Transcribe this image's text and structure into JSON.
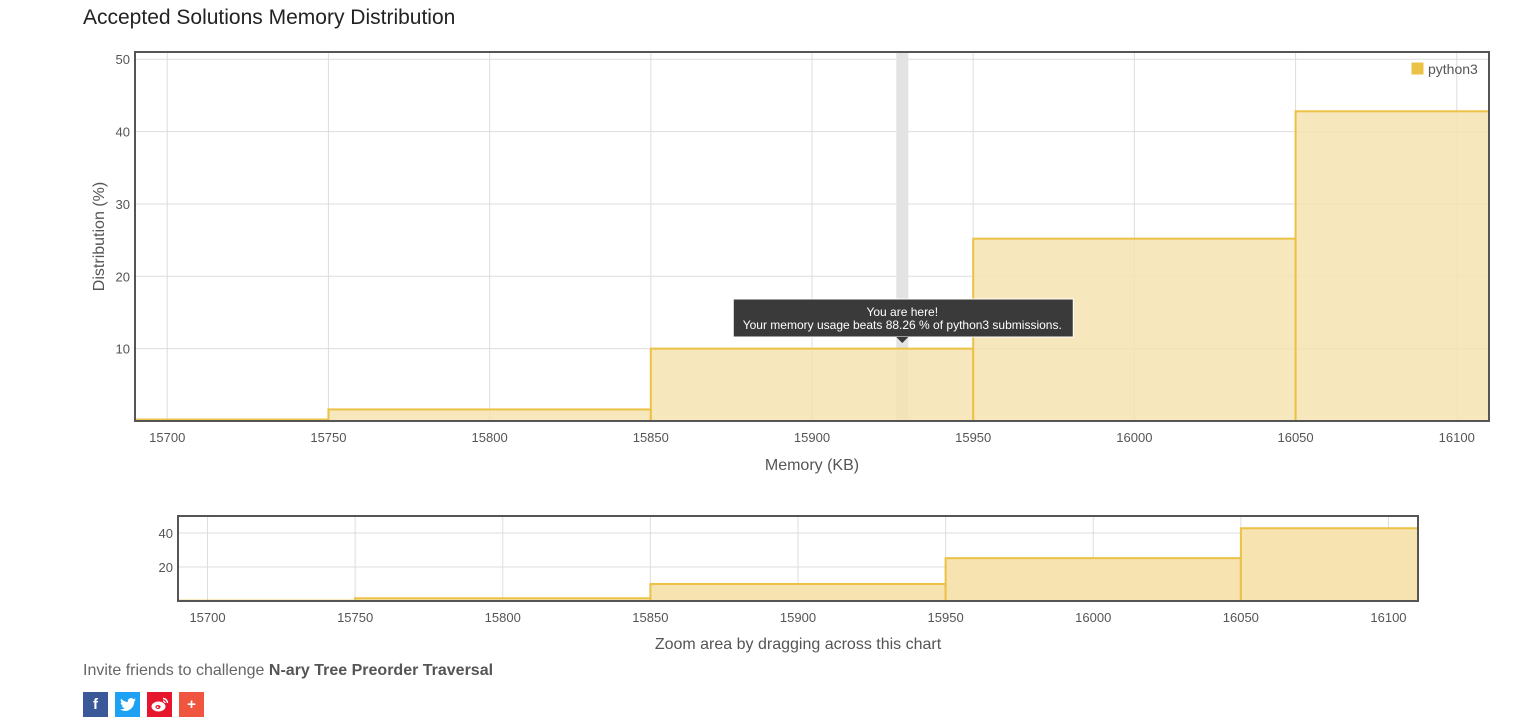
{
  "page": {
    "title": "Accepted Solutions Memory Distribution"
  },
  "chart_data": [
    {
      "type": "bar",
      "title": "Accepted Solutions Memory Distribution",
      "xlabel": "Memory (KB)",
      "ylabel": "Distribution (%)",
      "xlim": [
        15690,
        16110
      ],
      "ylim": [
        0,
        51
      ],
      "x_ticks": [
        15700,
        15750,
        15800,
        15850,
        15900,
        15950,
        16000,
        16050,
        16100
      ],
      "y_ticks": [
        10,
        20,
        30,
        40,
        50
      ],
      "grid": true,
      "legend_position": "top-right",
      "series": [
        {
          "name": "python3",
          "bins": [
            {
              "start": 15650,
              "end": 15750,
              "value": 0.2
            },
            {
              "start": 15750,
              "end": 15850,
              "value": 1.6
            },
            {
              "start": 15850,
              "end": 15950,
              "value": 10
            },
            {
              "start": 15950,
              "end": 16050,
              "value": 25.2
            },
            {
              "start": 16050,
              "end": 16150,
              "value": 42.8
            }
          ]
        }
      ],
      "marker": {
        "x": 15928
      },
      "tooltip": {
        "line1": "You are here!",
        "line2": "Your memory usage beats 88.26 % of python3 submissions."
      }
    },
    {
      "type": "bar",
      "xlabel": "Zoom area by dragging across this chart",
      "xlim": [
        15690,
        16110
      ],
      "ylim": [
        0,
        50
      ],
      "x_ticks": [
        15700,
        15750,
        15800,
        15850,
        15900,
        15950,
        16000,
        16050,
        16100
      ],
      "y_ticks": [
        20,
        40
      ],
      "grid": true,
      "series": [
        {
          "bins": [
            {
              "start": 15650,
              "end": 15750,
              "value": 0.2
            },
            {
              "start": 15750,
              "end": 15850,
              "value": 1.6
            },
            {
              "start": 15850,
              "end": 15950,
              "value": 10
            },
            {
              "start": 15950,
              "end": 16050,
              "value": 25.2
            },
            {
              "start": 16050,
              "end": 16150,
              "value": 42.8
            }
          ]
        }
      ]
    }
  ],
  "colors": {
    "bar_fill": "#f6e3b0",
    "bar_stroke": "#ebc146",
    "legend_swatch": "#ebc146",
    "frame": "#555555",
    "grid": "#dddddd",
    "marker": "#e3e3e3",
    "tooltip_bg": "#3a3a3a",
    "facebook": "#3b5998",
    "twitter": "#1da1f2",
    "weibo": "#e6162d",
    "share_more": "#f0563f"
  },
  "invite": {
    "prefix": "Invite friends to challenge",
    "problem": "N-ary Tree Preorder Traversal"
  },
  "share": {
    "facebook_icon": "facebook-icon",
    "twitter_icon": "twitter-icon",
    "weibo_icon": "weibo-icon",
    "more_icon": "plus-icon"
  }
}
